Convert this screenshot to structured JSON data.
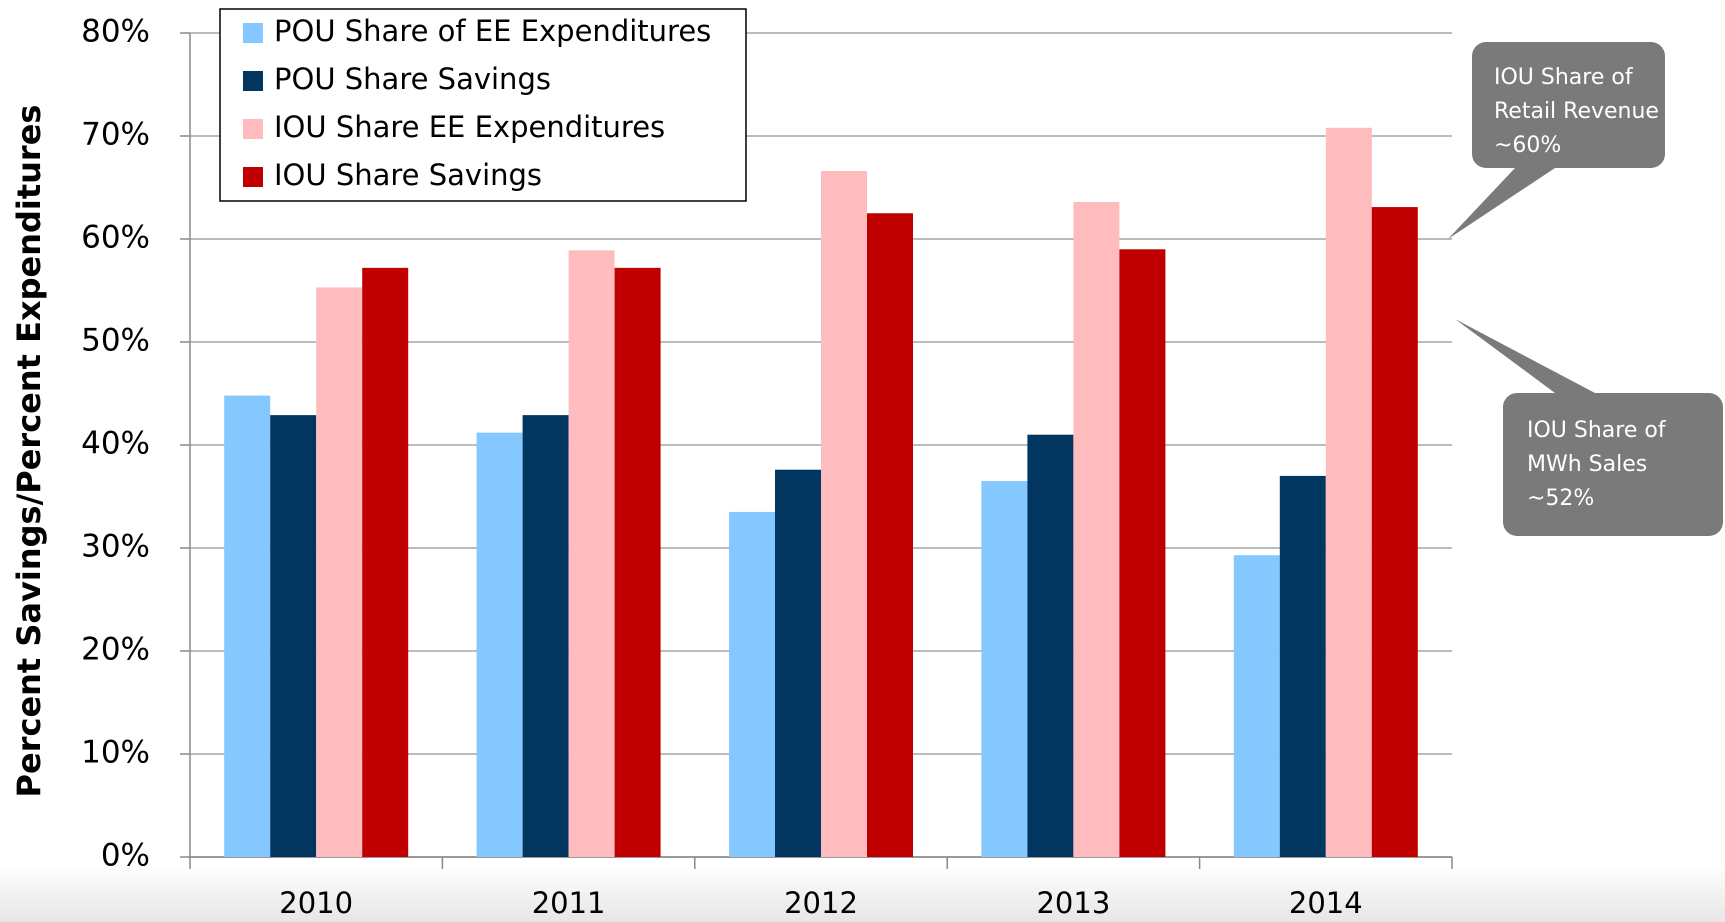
{
  "chart_data": {
    "type": "bar",
    "y_label": "Percent Savings/Percent Expenditures",
    "categories": [
      "2010",
      "2011",
      "2012",
      "2013",
      "2014"
    ],
    "series": [
      {
        "name": "POU Share of EE Expenditures",
        "color": "#85c7ff",
        "values": [
          44.8,
          41.2,
          33.5,
          36.5,
          29.3
        ]
      },
      {
        "name": "POU Share Savings",
        "color": "#003660",
        "values": [
          42.9,
          42.9,
          37.6,
          41.0,
          37.0
        ]
      },
      {
        "name": "IOU Share EE Expenditures",
        "color": "#ffbcbf",
        "values": [
          55.3,
          58.9,
          66.6,
          63.6,
          70.8
        ]
      },
      {
        "name": "IOU Share Savings",
        "color": "#c00000",
        "values": [
          57.2,
          57.2,
          62.5,
          59.0,
          63.1
        ]
      }
    ],
    "ylim": [
      0,
      80
    ],
    "yticks": [
      {
        "value": 0,
        "label": "0%"
      },
      {
        "value": 10,
        "label": "10%"
      },
      {
        "value": 20,
        "label": "20%"
      },
      {
        "value": 30,
        "label": "30%"
      },
      {
        "value": 40,
        "label": "40%"
      },
      {
        "value": 50,
        "label": "50%"
      },
      {
        "value": 60,
        "label": "60%"
      },
      {
        "value": 70,
        "label": "70%"
      },
      {
        "value": 80,
        "label": "80%"
      }
    ],
    "grid": true,
    "legend": "top-left",
    "annotations": [
      {
        "lines": [
          "IOU Share of",
          "Retail Revenue",
          "~60%"
        ]
      },
      {
        "lines": [
          "IOU Share of",
          "MWh Sales",
          "~52%"
        ]
      }
    ]
  }
}
